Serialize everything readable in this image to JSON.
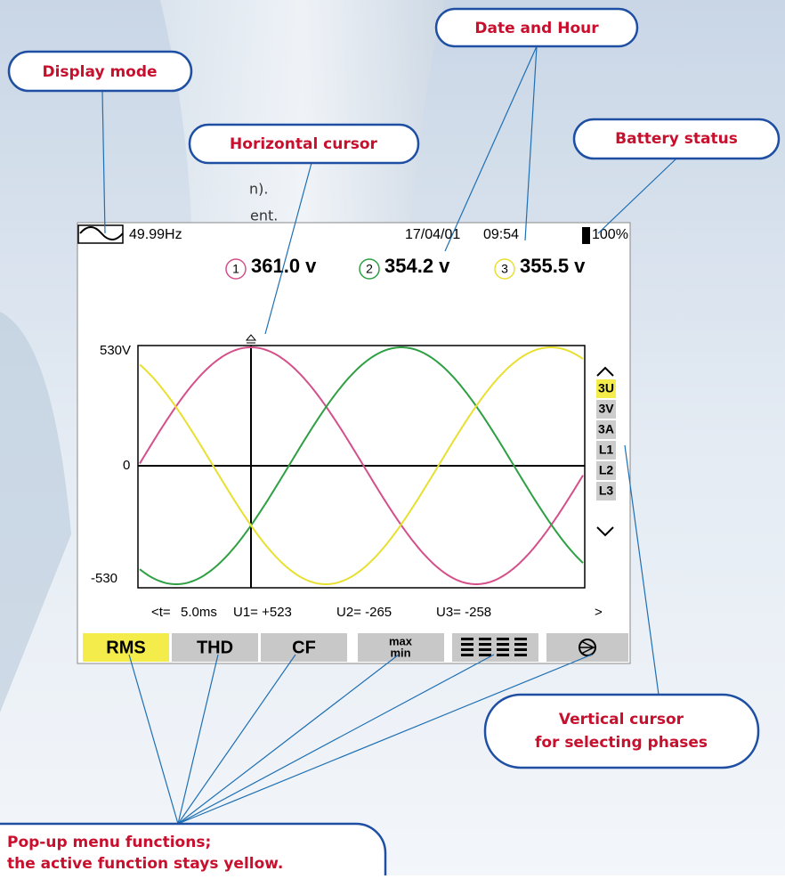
{
  "callouts": {
    "display_mode": "Display mode",
    "date_hour": "Date and Hour",
    "horizontal_cursor": "Horizontal cursor",
    "battery_status": "Battery status",
    "vertical_cursor": [
      "Vertical cursor",
      "for selecting phases"
    ],
    "popup_menu": [
      "Pop-up menu functions;",
      "the active function stays yellow."
    ]
  },
  "partial_text": [
    "n).",
    "ent."
  ],
  "screen": {
    "frequency": "49.99Hz",
    "date": "17/04/01",
    "time": "09:54",
    "battery": "100%",
    "phases": [
      {
        "number": "1",
        "value": "361.0 v"
      },
      {
        "number": "2",
        "value": "354.2 v"
      },
      {
        "number": "3",
        "value": "355.5 v"
      }
    ],
    "y_labels": [
      "530V",
      "0",
      "-530"
    ],
    "readout": [
      "<t=",
      "5.0ms",
      "U1= +523",
      "U2= -265",
      "U3= -258",
      ">"
    ],
    "side_menu": [
      "3U",
      "3V",
      "3A",
      "L1",
      "L2",
      "L3"
    ],
    "menu": [
      "RMS",
      "THD",
      "CF",
      "max",
      "min"
    ]
  }
}
